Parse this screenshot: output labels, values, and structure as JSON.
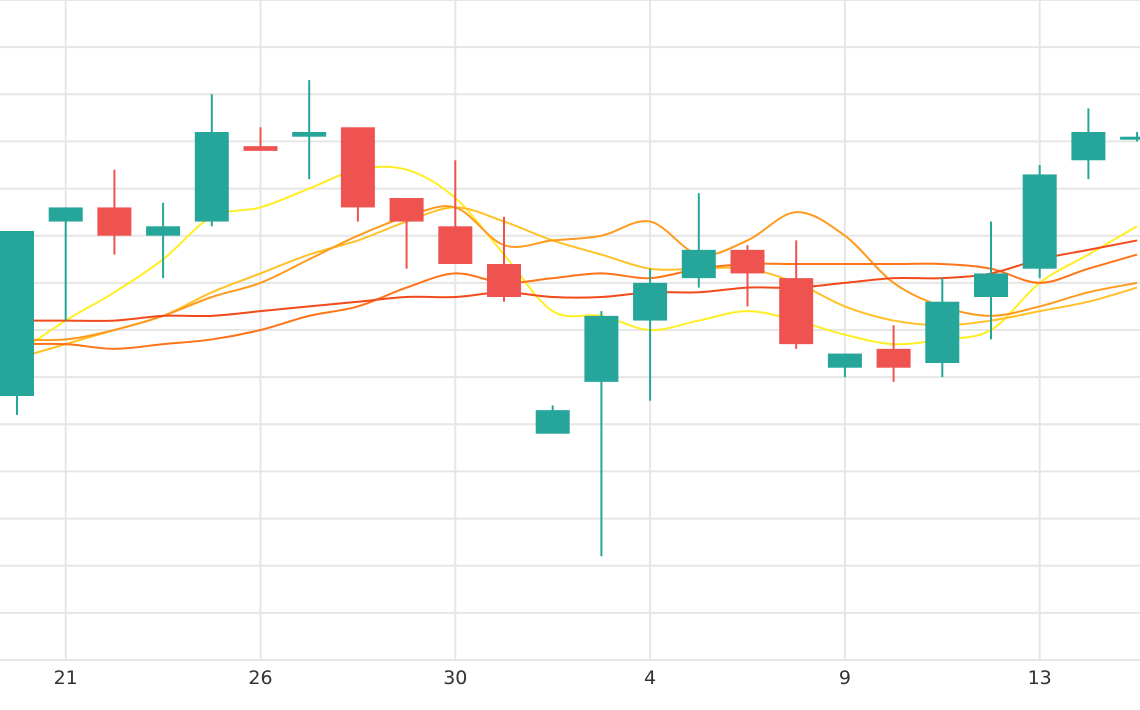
{
  "chart_data": {
    "type": "candlestick",
    "title": "",
    "xlabel": "",
    "ylabel": "",
    "grid": true,
    "legend": "none",
    "up_color": "#26a69a",
    "down_color": "#ef5350",
    "ylim": [
      0,
      14
    ],
    "ygrid_step": 1,
    "x_tick_labels": [
      {
        "label": "21",
        "index": 1
      },
      {
        "label": "26",
        "index": 5
      },
      {
        "label": "30",
        "index": 9
      },
      {
        "label": "4",
        "index": 13
      },
      {
        "label": "9",
        "index": 17
      },
      {
        "label": "13",
        "index": 21
      }
    ],
    "candles": [
      {
        "o": 5.6,
        "h": 9.1,
        "l": 5.2,
        "c": 9.1
      },
      {
        "o": 9.3,
        "h": 9.6,
        "l": 7.2,
        "c": 9.6
      },
      {
        "o": 9.6,
        "h": 10.4,
        "l": 8.6,
        "c": 9.0
      },
      {
        "o": 9.0,
        "h": 9.7,
        "l": 8.1,
        "c": 9.2
      },
      {
        "o": 9.3,
        "h": 12.0,
        "l": 9.2,
        "c": 11.2
      },
      {
        "o": 10.9,
        "h": 11.3,
        "l": 10.8,
        "c": 10.8
      },
      {
        "o": 11.1,
        "h": 12.3,
        "l": 10.2,
        "c": 11.2
      },
      {
        "o": 11.3,
        "h": 11.2,
        "l": 9.3,
        "c": 9.6
      },
      {
        "o": 9.8,
        "h": 9.8,
        "l": 8.3,
        "c": 9.3
      },
      {
        "o": 9.2,
        "h": 10.6,
        "l": 8.4,
        "c": 8.4
      },
      {
        "o": 8.4,
        "h": 9.4,
        "l": 7.6,
        "c": 7.7
      },
      {
        "o": 4.8,
        "h": 5.4,
        "l": 4.9,
        "c": 5.3
      },
      {
        "o": 5.9,
        "h": 7.4,
        "l": 2.2,
        "c": 7.3
      },
      {
        "o": 7.2,
        "h": 8.3,
        "l": 5.5,
        "c": 8.0
      },
      {
        "o": 8.1,
        "h": 9.9,
        "l": 7.9,
        "c": 8.7
      },
      {
        "o": 8.7,
        "h": 8.8,
        "l": 7.5,
        "c": 8.2
      },
      {
        "o": 8.1,
        "h": 8.9,
        "l": 6.6,
        "c": 6.7
      },
      {
        "o": 6.2,
        "h": 6.4,
        "l": 6.0,
        "c": 6.5
      },
      {
        "o": 6.6,
        "h": 7.1,
        "l": 5.9,
        "c": 6.2
      },
      {
        "o": 6.3,
        "h": 8.1,
        "l": 6.0,
        "c": 7.6
      },
      {
        "o": 7.7,
        "h": 9.3,
        "l": 6.8,
        "c": 8.2
      },
      {
        "o": 8.3,
        "h": 10.5,
        "l": 8.1,
        "c": 10.3
      },
      {
        "o": 10.6,
        "h": 11.7,
        "l": 10.2,
        "c": 11.2
      },
      {
        "o": 11.1,
        "h": 11.2,
        "l": 11.0,
        "c": 11.1
      }
    ],
    "series": [
      {
        "color": "#ffee22",
        "values": [
          6.5,
          7.2,
          7.8,
          8.5,
          9.4,
          9.6,
          10.0,
          10.4,
          10.4,
          9.8,
          8.6,
          7.4,
          7.3,
          7.0,
          7.2,
          7.4,
          7.2,
          6.9,
          6.7,
          6.8,
          7.0,
          8.0,
          8.6,
          9.2
        ]
      },
      {
        "color": "#ffc125",
        "values": [
          6.4,
          6.7,
          7.0,
          7.3,
          7.8,
          8.2,
          8.6,
          8.9,
          9.3,
          9.6,
          9.3,
          8.9,
          8.6,
          8.3,
          8.3,
          8.3,
          8.0,
          7.5,
          7.2,
          7.1,
          7.2,
          7.4,
          7.6,
          7.9
        ]
      },
      {
        "color": "#ff9a1f",
        "values": [
          6.8,
          6.8,
          7.0,
          7.3,
          7.7,
          8.0,
          8.5,
          9.0,
          9.4,
          9.6,
          8.8,
          8.9,
          9.0,
          9.3,
          8.6,
          8.9,
          9.5,
          9.0,
          8.0,
          7.5,
          7.3,
          7.5,
          7.8,
          8.0
        ]
      },
      {
        "color": "#ff7419",
        "values": [
          6.7,
          6.7,
          6.6,
          6.7,
          6.8,
          7.0,
          7.3,
          7.5,
          7.9,
          8.2,
          8.0,
          8.1,
          8.2,
          8.1,
          8.3,
          8.4,
          8.4,
          8.4,
          8.4,
          8.4,
          8.3,
          8.0,
          8.3,
          8.6
        ]
      },
      {
        "color": "#f24a1b",
        "values": [
          7.2,
          7.2,
          7.2,
          7.3,
          7.3,
          7.4,
          7.5,
          7.6,
          7.7,
          7.7,
          7.8,
          7.7,
          7.7,
          7.8,
          7.8,
          7.9,
          7.9,
          8.0,
          8.1,
          8.1,
          8.2,
          8.5,
          8.7,
          8.9
        ]
      }
    ]
  }
}
